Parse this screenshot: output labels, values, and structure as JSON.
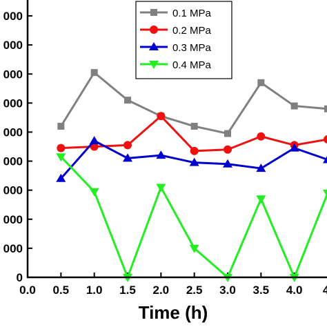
{
  "chart_data": {
    "type": "line",
    "title": "",
    "xlabel": "Time (h)",
    "ylabel": "",
    "x": [
      0.5,
      1.0,
      1.5,
      2.0,
      2.5,
      3.0,
      3.5,
      4.0,
      4.5
    ],
    "xlim": [
      0.0,
      4.5
    ],
    "xticks": [
      "0.0",
      "0.5",
      "1.0",
      "1.5",
      "2.0",
      "2.5",
      "3.0",
      "3.5",
      "4.0",
      "4."
    ],
    "ylim": [
      -0.5,
      9.5
    ],
    "yticks": [
      0,
      1,
      2,
      3,
      4,
      5,
      6,
      7,
      8,
      9
    ],
    "ytick_labels": [
      "0",
      "000",
      "000",
      "000",
      "000",
      "000",
      "000",
      "000",
      "000",
      "000"
    ],
    "grid": false,
    "legend_position": "top-center",
    "series": [
      {
        "name": "0.1 MPa",
        "color": "#808080",
        "marker": "square",
        "values": [
          5.2,
          7.05,
          6.1,
          5.55,
          5.2,
          4.95,
          6.7,
          5.9,
          5.8
        ]
      },
      {
        "name": "0.2 MPa",
        "color": "#ee1111",
        "marker": "circle",
        "values": [
          4.45,
          4.5,
          4.55,
          5.55,
          4.35,
          4.4,
          4.85,
          4.55,
          4.75
        ]
      },
      {
        "name": "0.3 MPa",
        "color": "#0000cc",
        "marker": "triangle-up",
        "values": [
          3.4,
          4.7,
          4.1,
          4.2,
          3.95,
          3.9,
          3.75,
          4.45,
          4.05
        ]
      },
      {
        "name": "0.4 MPa",
        "color": "#22ee22",
        "marker": "triangle-down",
        "values": [
          4.15,
          2.95,
          0.0,
          3.1,
          1.0,
          0.0,
          2.7,
          0.0,
          2.9
        ]
      }
    ]
  }
}
